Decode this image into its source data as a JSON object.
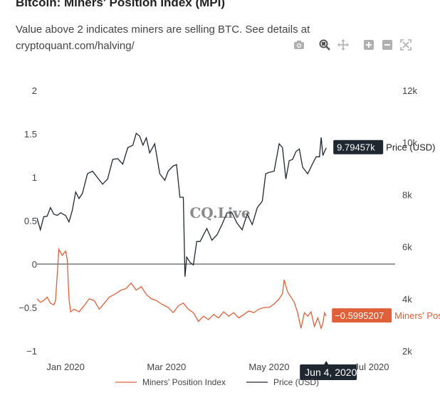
{
  "header": {
    "title": "Bitcoin: Miners' Position Index (MPI)",
    "subtitle": "Value above 2 indicates miners are selling BTC. See details at cryptoquant.com/halving/"
  },
  "modebar": {
    "icons": [
      "camera-icon",
      "zoom-icon",
      "pan-icon",
      "zoom-in-icon",
      "zoom-out-icon",
      "autoscale-icon"
    ]
  },
  "watermark": "CQ.Live",
  "hover": {
    "date_label": "Jun 4, 2020",
    "price_label": "9.79457k",
    "mpi_label": "−0.5995207",
    "price_series_tag": "Price (USD)",
    "mpi_series_tag": "Miners' Posi..."
  },
  "colors": {
    "mpi": "#e0603a",
    "price": "#1f2730",
    "zero_line": "#333333",
    "hover_dark": "#1f2730"
  },
  "chart_data": {
    "type": "line",
    "title": "Bitcoin: Miners' Position Index (MPI)",
    "x_ticks": [
      {
        "date": "2020-01-01",
        "label": "Jan 2020"
      },
      {
        "date": "2020-03-01",
        "label": "Mar 2020"
      },
      {
        "date": "2020-05-01",
        "label": "May 2020"
      },
      {
        "date": "2020-07-01",
        "label": "Jul 2020"
      }
    ],
    "xlim": [
      "2019-12-15",
      "2020-07-15"
    ],
    "y_left": {
      "range": [
        -1.0,
        2.0
      ],
      "ticks": [
        2,
        1.5,
        1,
        0.5,
        0,
        -0.5,
        -1
      ],
      "tick_labels": [
        "2",
        "1.5",
        "1",
        "0.5",
        "0",
        "−0.5",
        "−1"
      ]
    },
    "y_right": {
      "range": [
        2000,
        12000
      ],
      "ticks": [
        12000,
        10000,
        8000,
        6000,
        4000,
        2000
      ],
      "tick_labels": [
        "12k",
        "10k",
        "8k",
        "6k",
        "4k",
        "2k"
      ]
    },
    "grid": false,
    "legend_position": "bottom",
    "series": [
      {
        "name": "Miners' Position Index",
        "axis": "left",
        "color": "#e0603a",
        "points": [
          [
            "2019-12-15",
            -0.4
          ],
          [
            "2019-12-17",
            -0.44
          ],
          [
            "2019-12-19",
            -0.42
          ],
          [
            "2019-12-21",
            -0.38
          ],
          [
            "2019-12-23",
            -0.45
          ],
          [
            "2019-12-25",
            -0.47
          ],
          [
            "2019-12-26",
            -0.42
          ],
          [
            "2019-12-28",
            0.17
          ],
          [
            "2019-12-30",
            0.1
          ],
          [
            "2020-01-01",
            0.15
          ],
          [
            "2020-01-02",
            0.05
          ],
          [
            "2020-01-03",
            -0.4
          ],
          [
            "2020-01-04",
            -0.55
          ],
          [
            "2020-01-06",
            -0.52
          ],
          [
            "2020-01-09",
            -0.55
          ],
          [
            "2020-01-12",
            -0.48
          ],
          [
            "2020-01-15",
            -0.4
          ],
          [
            "2020-01-18",
            -0.42
          ],
          [
            "2020-01-21",
            -0.52
          ],
          [
            "2020-01-24",
            -0.45
          ],
          [
            "2020-01-27",
            -0.38
          ],
          [
            "2020-01-30",
            -0.35
          ],
          [
            "2020-02-03",
            -0.3
          ],
          [
            "2020-02-06",
            -0.28
          ],
          [
            "2020-02-09",
            -0.22
          ],
          [
            "2020-02-12",
            -0.3
          ],
          [
            "2020-02-15",
            -0.26
          ],
          [
            "2020-02-18",
            -0.35
          ],
          [
            "2020-02-21",
            -0.4
          ],
          [
            "2020-02-24",
            -0.42
          ],
          [
            "2020-02-27",
            -0.46
          ],
          [
            "2020-03-02",
            -0.5
          ],
          [
            "2020-03-05",
            -0.56
          ],
          [
            "2020-03-08",
            -0.48
          ],
          [
            "2020-03-11",
            -0.45
          ],
          [
            "2020-03-14",
            -0.52
          ],
          [
            "2020-03-17",
            -0.56
          ],
          [
            "2020-03-20",
            -0.66
          ],
          [
            "2020-03-23",
            -0.6
          ],
          [
            "2020-03-26",
            -0.64
          ],
          [
            "2020-03-29",
            -0.58
          ],
          [
            "2020-04-01",
            -0.62
          ],
          [
            "2020-04-04",
            -0.55
          ],
          [
            "2020-04-07",
            -0.6
          ],
          [
            "2020-04-10",
            -0.56
          ],
          [
            "2020-04-13",
            -0.62
          ],
          [
            "2020-04-16",
            -0.58
          ],
          [
            "2020-04-19",
            -0.54
          ],
          [
            "2020-04-22",
            -0.56
          ],
          [
            "2020-04-25",
            -0.52
          ],
          [
            "2020-04-28",
            -0.5
          ],
          [
            "2020-05-01",
            -0.5
          ],
          [
            "2020-05-04",
            -0.46
          ],
          [
            "2020-05-07",
            -0.4
          ],
          [
            "2020-05-09",
            -0.34
          ],
          [
            "2020-05-10",
            -0.18
          ],
          [
            "2020-05-12",
            -0.32
          ],
          [
            "2020-05-14",
            -0.38
          ],
          [
            "2020-05-16",
            -0.44
          ],
          [
            "2020-05-18",
            -0.56
          ],
          [
            "2020-05-20",
            -0.74
          ],
          [
            "2020-05-22",
            -0.56
          ],
          [
            "2020-05-24",
            -0.6
          ],
          [
            "2020-05-26",
            -0.55
          ],
          [
            "2020-05-28",
            -0.72
          ],
          [
            "2020-05-30",
            -0.62
          ],
          [
            "2020-06-01",
            -0.74
          ],
          [
            "2020-06-02",
            -0.68
          ],
          [
            "2020-06-03",
            -0.56
          ],
          [
            "2020-06-04",
            -0.5995207
          ]
        ]
      },
      {
        "name": "Price (USD)",
        "axis": "right",
        "color": "#1f2730",
        "points": [
          [
            "2019-12-15",
            7100
          ],
          [
            "2019-12-17",
            6650
          ],
          [
            "2019-12-19",
            7150
          ],
          [
            "2019-12-21",
            7170
          ],
          [
            "2019-12-23",
            7500
          ],
          [
            "2019-12-25",
            7250
          ],
          [
            "2019-12-27",
            7200
          ],
          [
            "2019-12-29",
            7300
          ],
          [
            "2020-01-01",
            7200
          ],
          [
            "2020-01-03",
            6950
          ],
          [
            "2020-01-05",
            7400
          ],
          [
            "2020-01-07",
            8100
          ],
          [
            "2020-01-09",
            7850
          ],
          [
            "2020-01-11",
            8050
          ],
          [
            "2020-01-14",
            8800
          ],
          [
            "2020-01-17",
            8900
          ],
          [
            "2020-01-20",
            8650
          ],
          [
            "2020-01-23",
            8400
          ],
          [
            "2020-01-26",
            8600
          ],
          [
            "2020-01-29",
            9350
          ],
          [
            "2020-02-01",
            9380
          ],
          [
            "2020-02-04",
            9170
          ],
          [
            "2020-02-07",
            9800
          ],
          [
            "2020-02-10",
            9900
          ],
          [
            "2020-02-12",
            10350
          ],
          [
            "2020-02-14",
            10250
          ],
          [
            "2020-02-16",
            9900
          ],
          [
            "2020-02-18",
            10180
          ],
          [
            "2020-02-20",
            9600
          ],
          [
            "2020-02-23",
            9950
          ],
          [
            "2020-02-26",
            8800
          ],
          [
            "2020-02-29",
            8550
          ],
          [
            "2020-03-02",
            8900
          ],
          [
            "2020-03-05",
            9100
          ],
          [
            "2020-03-07",
            9150
          ],
          [
            "2020-03-09",
            7900
          ],
          [
            "2020-03-11",
            7900
          ],
          [
            "2020-03-12",
            4850
          ],
          [
            "2020-03-13",
            5600
          ],
          [
            "2020-03-15",
            5400
          ],
          [
            "2020-03-17",
            5300
          ],
          [
            "2020-03-19",
            6200
          ],
          [
            "2020-03-21",
            6200
          ],
          [
            "2020-03-23",
            6450
          ],
          [
            "2020-03-25",
            6700
          ],
          [
            "2020-03-28",
            6250
          ],
          [
            "2020-03-31",
            6450
          ],
          [
            "2020-04-03",
            6850
          ],
          [
            "2020-04-06",
            7300
          ],
          [
            "2020-04-09",
            7300
          ],
          [
            "2020-04-12",
            6900
          ],
          [
            "2020-04-15",
            6650
          ],
          [
            "2020-04-18",
            7250
          ],
          [
            "2020-04-21",
            6850
          ],
          [
            "2020-04-24",
            7500
          ],
          [
            "2020-04-27",
            7750
          ],
          [
            "2020-04-29",
            8800
          ],
          [
            "2020-05-01",
            8850
          ],
          [
            "2020-05-04",
            8900
          ],
          [
            "2020-05-07",
            9950
          ],
          [
            "2020-05-09",
            9800
          ],
          [
            "2020-05-11",
            8600
          ],
          [
            "2020-05-13",
            9300
          ],
          [
            "2020-05-15",
            9350
          ],
          [
            "2020-05-17",
            9650
          ],
          [
            "2020-05-19",
            9750
          ],
          [
            "2020-05-21",
            9050
          ],
          [
            "2020-05-24",
            8800
          ],
          [
            "2020-05-27",
            9200
          ],
          [
            "2020-05-29",
            9450
          ],
          [
            "2020-05-31",
            9450
          ],
          [
            "2020-06-01",
            10200
          ],
          [
            "2020-06-02",
            9500
          ],
          [
            "2020-06-03",
            9650
          ],
          [
            "2020-06-04",
            9794.57
          ]
        ]
      }
    ]
  }
}
